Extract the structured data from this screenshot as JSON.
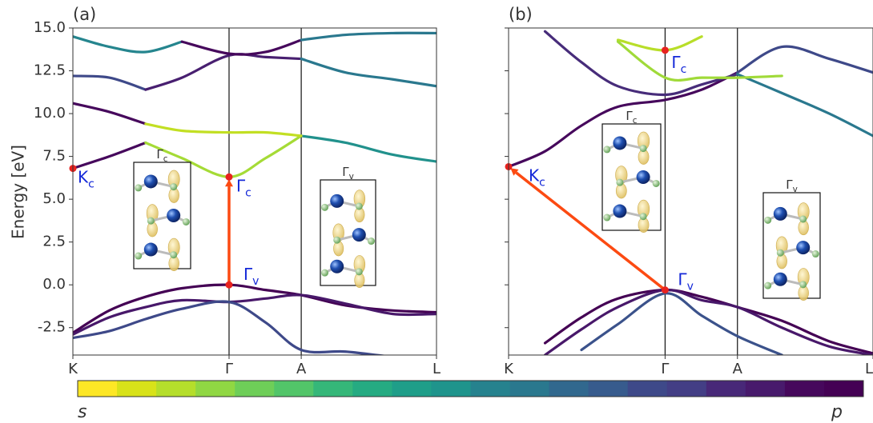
{
  "chart_data": [
    {
      "type": "line",
      "title": "(a)",
      "ylabel": "Energy  [eV]",
      "x": [
        0,
        0.1,
        0.2,
        0.3,
        0.4295,
        0.53,
        0.628,
        0.75,
        0.88,
        1
      ],
      "xlim": [
        0,
        1
      ],
      "ylim": [
        -4.1,
        15
      ],
      "xticks": [
        {
          "value": 0,
          "label": "K"
        },
        {
          "value": 0.4295,
          "label": "Γ"
        },
        {
          "value": 0.628,
          "label": "A"
        },
        {
          "value": 1,
          "label": "L"
        }
      ],
      "yticks": [
        {
          "value": -2.5,
          "label": "-2.5"
        },
        {
          "value": 0,
          "label": "0.0"
        },
        {
          "value": 2.5,
          "label": "2.5"
        },
        {
          "value": 5,
          "label": "5.0"
        },
        {
          "value": 7.5,
          "label": "7.5"
        },
        {
          "value": 10,
          "label": "10.0"
        },
        {
          "value": 12.5,
          "label": "12.5"
        },
        {
          "value": 15,
          "label": "15.0"
        }
      ],
      "ytick_labels": true,
      "vlines": true,
      "series": [
        {
          "color": "#46085c",
          "values": [
            6.8,
            7.5,
            8.3,
            null,
            null,
            null,
            null,
            null,
            null,
            null
          ]
        },
        {
          "color": "#a5db36",
          "values": [
            null,
            null,
            8.3,
            7.4,
            6.3,
            7.4,
            8.7,
            null,
            null,
            null
          ]
        },
        {
          "color": "#21918c",
          "values": [
            null,
            null,
            null,
            null,
            null,
            null,
            8.7,
            8.3,
            7.6,
            7.2
          ]
        },
        {
          "color": "#46085c",
          "values": [
            10.6,
            10.1,
            9.4,
            null,
            null,
            null,
            null,
            null,
            null,
            null
          ]
        },
        {
          "color": "#c2df23",
          "values": [
            null,
            null,
            9.4,
            9.0,
            8.9,
            8.9,
            8.7,
            null,
            null,
            null
          ]
        },
        {
          "color": "#3e4989",
          "values": [
            12.2,
            12.1,
            11.4,
            null,
            null,
            null,
            null,
            null,
            null,
            null
          ]
        },
        {
          "color": "#481f70",
          "values": [
            null,
            null,
            11.4,
            12.1,
            13.4,
            13.3,
            13.2,
            null,
            null,
            null
          ]
        },
        {
          "color": "#2a788e",
          "values": [
            null,
            null,
            null,
            null,
            null,
            null,
            13.2,
            12.4,
            12.0,
            11.6
          ]
        },
        {
          "color": "#25858e",
          "values": [
            14.5,
            13.9,
            13.6,
            14.2,
            null,
            null,
            null,
            null,
            null,
            null
          ]
        },
        {
          "color": "#46085c",
          "values": [
            null,
            null,
            null,
            14.2,
            13.5,
            13.6,
            14.3,
            null,
            null,
            null
          ]
        },
        {
          "color": "#2a788e",
          "values": [
            null,
            null,
            null,
            null,
            null,
            null,
            14.3,
            14.6,
            14.7,
            14.7
          ]
        },
        {
          "color": "#440154",
          "values": [
            -2.8,
            -1.5,
            -0.7,
            -0.2,
            0,
            -0.3,
            -0.6,
            -1.2,
            -1.5,
            -1.6
          ]
        },
        {
          "color": "#48186a",
          "values": [
            -2.9,
            -1.9,
            -1.3,
            -0.9,
            -1.0,
            -0.8,
            -0.6,
            -1.1,
            -1.7,
            -1.7
          ]
        },
        {
          "color": "#3e4989",
          "values": [
            -3.1,
            -2.7,
            -2.0,
            -1.4,
            -1.0,
            -2.2,
            -3.8,
            -3.9,
            -4.2,
            -4.3
          ]
        }
      ],
      "points": [
        {
          "label": "K",
          "sub": "c",
          "x": 0,
          "y": 6.8
        },
        {
          "label": "Γ",
          "sub": "c",
          "x": 0.4295,
          "y": 6.3
        },
        {
          "label": "Γ",
          "sub": "v",
          "x": 0.4295,
          "y": 0
        }
      ],
      "insets": [
        {
          "label": "Γ",
          "sub": "c"
        },
        {
          "label": "Γ",
          "sub": "v"
        }
      ]
    },
    {
      "type": "line",
      "title": "(b)",
      "x": [
        0,
        0.1,
        0.2,
        0.3,
        0.4295,
        0.53,
        0.628,
        0.75,
        0.88,
        1
      ],
      "xlim": [
        0,
        1
      ],
      "ylim": [
        -4.1,
        15
      ],
      "xticks": [
        {
          "value": 0,
          "label": "K"
        },
        {
          "value": 0.4295,
          "label": "Γ"
        },
        {
          "value": 0.628,
          "label": "A"
        },
        {
          "value": 1,
          "label": "L"
        }
      ],
      "yticks": [
        -2.5,
        0,
        2.5,
        5,
        7.5,
        10,
        12.5,
        15
      ],
      "ytick_labels": false,
      "vlines": true,
      "series": [
        {
          "color": "#46085c",
          "values": [
            6.9,
            7.8,
            9.3,
            10.4,
            10.8,
            11.4,
            12.4,
            null,
            null,
            null
          ]
        },
        {
          "color": "#3e4989",
          "values": [
            null,
            null,
            null,
            null,
            null,
            null,
            12.4,
            13.9,
            13.2,
            12.4
          ]
        },
        {
          "color": "#472c7a",
          "values": [
            null,
            14.8,
            13.0,
            11.6,
            11.1,
            11.7,
            12.3,
            null,
            null,
            null
          ]
        },
        {
          "color": "#2a788e",
          "values": [
            null,
            null,
            null,
            null,
            null,
            null,
            12.3,
            11.2,
            10.0,
            8.7
          ]
        },
        {
          "color": "#b8de29",
          "values": [
            null,
            null,
            null,
            14.3,
            13.7,
            14.5,
            null,
            null,
            null,
            null
          ]
        },
        {
          "color": "#a0da39",
          "values": [
            null,
            null,
            null,
            14.2,
            12.1,
            12.1,
            12.1,
            12.2,
            null,
            null
          ]
        },
        {
          "color": "#440154",
          "values": [
            null,
            -3.4,
            -1.9,
            -0.8,
            -0.3,
            -0.7,
            -1.3,
            -2.1,
            -3.3,
            -4.0
          ]
        },
        {
          "color": "#48186a",
          "values": [
            null,
            -4.1,
            -2.6,
            -1.3,
            -0.3,
            -0.9,
            -1.3,
            -2.5,
            -3.6,
            -4.1
          ]
        },
        {
          "color": "#3b528b",
          "values": [
            null,
            null,
            -3.8,
            -2.3,
            -0.5,
            -1.8,
            -3.0,
            -4.1,
            null,
            null
          ]
        }
      ],
      "points": [
        {
          "label": "K",
          "sub": "c",
          "x": 0,
          "y": 6.9
        },
        {
          "label": "Γ",
          "sub": "c",
          "x": 0.4295,
          "y": 13.7
        },
        {
          "label": "Γ",
          "sub": "v",
          "x": 0.4295,
          "y": -0.3
        }
      ],
      "insets": [
        {
          "label": "Γ",
          "sub": "c"
        },
        {
          "label": "Γ",
          "sub": "v"
        }
      ]
    }
  ],
  "colorbar": {
    "left_label": "s",
    "right_label": "p",
    "colors": [
      "#fde725",
      "#d8e219",
      "#b5de2b",
      "#90d743",
      "#6ece58",
      "#52c569",
      "#35b779",
      "#25ab82",
      "#1f9e89",
      "#1f948c",
      "#26828e",
      "#2a788e",
      "#31688e",
      "#375b8d",
      "#3e4989",
      "#433e85",
      "#482878",
      "#481a6c",
      "#46085c",
      "#440154"
    ]
  }
}
